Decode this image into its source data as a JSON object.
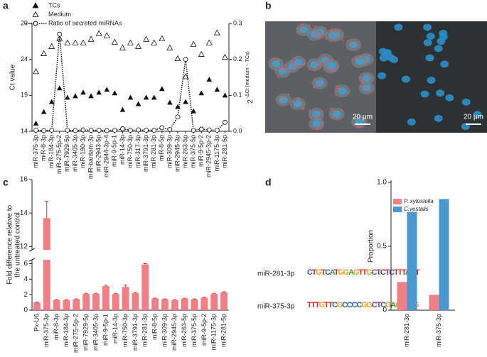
{
  "panel_labels": [
    "a",
    "b",
    "c",
    "d"
  ],
  "chart_data": [
    {
      "type": "line",
      "y_label": "Ct value",
      "y2_label_base": "2",
      "y2_label_sup": "−ΔCt (medium − TCs)",
      "categories": [
        "miR-375-3p",
        "miR-8-3p",
        "miR-184-3p",
        "miR-275-5p-2",
        "miR-7929-5p",
        "miR-3405-3p",
        "miR-190-3p",
        "miR-bantam-3p",
        "miR-2943-5p",
        "miR-2944-3p-4",
        "miR-9-5p-1",
        "miR-14-3p",
        "miR-750-3p",
        "miR-317-3p",
        "miR-3791-3p",
        "miR-281-3p",
        "miR-8-5p",
        "miR-309-3p",
        "miR-2945-3p",
        "miR-263-5p",
        "miR-375-5p",
        "miR-9-5p-2",
        "miR-2945-3p-2",
        "miR-1175-3p",
        "miR-281-5p"
      ],
      "series": [
        {
          "name": "TCs",
          "color": "#111111",
          "marker": "filled-triangle",
          "axis": "y",
          "values": [
            15.1,
            16.7,
            18.1,
            20.0,
            18.7,
            18.9,
            19.4,
            18.9,
            19.4,
            19.8,
            19.3,
            17.0,
            18.7,
            17.8,
            18.7,
            18.7,
            19.9,
            18.0,
            17.4,
            18.1,
            16.8,
            19.3,
            21.2,
            19.8,
            19.0
          ]
        },
        {
          "name": "Medium",
          "color": "#111111",
          "marker": "open-triangle",
          "axis": "y",
          "values": [
            22.3,
            24.8,
            25.8,
            26.9,
            26.3,
            26.3,
            26.3,
            26.8,
            27.6,
            27.3,
            26.4,
            25.6,
            26.3,
            25.8,
            26.8,
            26.3,
            26.9,
            25.6,
            24.1,
            21.6,
            26.1,
            24.7,
            26.3,
            27.7,
            24.3
          ]
        },
        {
          "name": "Ratio of secreted miRNAs",
          "color": "#111111",
          "marker": "open-circle",
          "line": "dotted",
          "axis": "y2",
          "values": [
            0.003,
            0.002,
            0.003,
            0.27,
            0.003,
            0.002,
            0.004,
            0.003,
            0.003,
            0.002,
            0.003,
            0.007,
            0.003,
            0.004,
            0.003,
            0.003,
            0.01,
            0.005,
            0.04,
            0.2,
            0.003,
            0.006,
            0.004,
            0.003,
            0.025
          ]
        }
      ],
      "ylim": [
        14,
        29
      ],
      "yticks": [
        14,
        19,
        24,
        29
      ],
      "y2lim": [
        0,
        0.3
      ],
      "y2ticks": [
        {
          "value": 0,
          "label": "0.0"
        },
        0.1,
        0.2,
        0.3
      ],
      "legend": "upper-left"
    },
    {
      "type": "bar",
      "y_label": [
        "Fold difference relative to",
        "the untreated control"
      ],
      "categories": [
        "Px-U6",
        "miR-375-3p",
        "miR-8-3p",
        "miR-184-3p",
        "miR-275-5p-2",
        "miR-7929-5p",
        "miR-3405-3p",
        "miR-9-5p-1",
        "miR-14-3p",
        "miR-750-3p",
        "miR-3791-3p",
        "miR-281-3p",
        "miR-8-5p",
        "miR-309-3p",
        "miR-2945-3p",
        "miR-263-5p",
        "miR-375-5p",
        "miR-9-5p-2",
        "miR-1175-3p",
        "miR-281-5p"
      ],
      "values": [
        1.0,
        13.7,
        1.3,
        1.3,
        1.4,
        2.1,
        2.1,
        3.1,
        2.1,
        3.0,
        2.2,
        5.9,
        1.5,
        1.4,
        1.3,
        1.5,
        1.4,
        1.6,
        2.1,
        2.3
      ],
      "errors": [
        0.05,
        1.0,
        0.05,
        0.05,
        0.05,
        0.08,
        0.08,
        0.12,
        0.08,
        0.2,
        0.08,
        0.1,
        0.05,
        0.05,
        0.05,
        0.05,
        0.05,
        0.06,
        0.08,
        0.08
      ],
      "color": "#f07f86",
      "ylim": [
        0,
        16
      ],
      "axis_break": [
        6.5,
        11.8
      ],
      "yticks": [
        0,
        2,
        4,
        6,
        12,
        14,
        16
      ]
    },
    {
      "type": "grouped-bar",
      "y_label": "Proportion",
      "categories": [
        "miR-281-3p",
        "miR-375-3p"
      ],
      "series": [
        {
          "name": "P. xylostella",
          "color": "#f07f86",
          "values": [
            0.22,
            0.12
          ]
        },
        {
          "name": "C.vestalis",
          "color": "#4a98d0",
          "values": [
            0.77,
            0.87
          ]
        }
      ],
      "ylim": [
        0,
        1
      ],
      "yticks": [
        0,
        0.5,
        {
          "value": 1,
          "label": "1.0"
        }
      ],
      "legend": "upper-left"
    }
  ],
  "image": {
    "scale_bars": [
      "20 μm",
      "20 μm"
    ]
  },
  "logos": [
    {
      "name": "miR-281-3p",
      "sequence": "CTGTCATGGAGTTGCTCTCTTTAGT"
    },
    {
      "name": "miR-375-3p",
      "sequence": "TTTGTTCGCCCCGGCTCGAGTTCG"
    }
  ]
}
